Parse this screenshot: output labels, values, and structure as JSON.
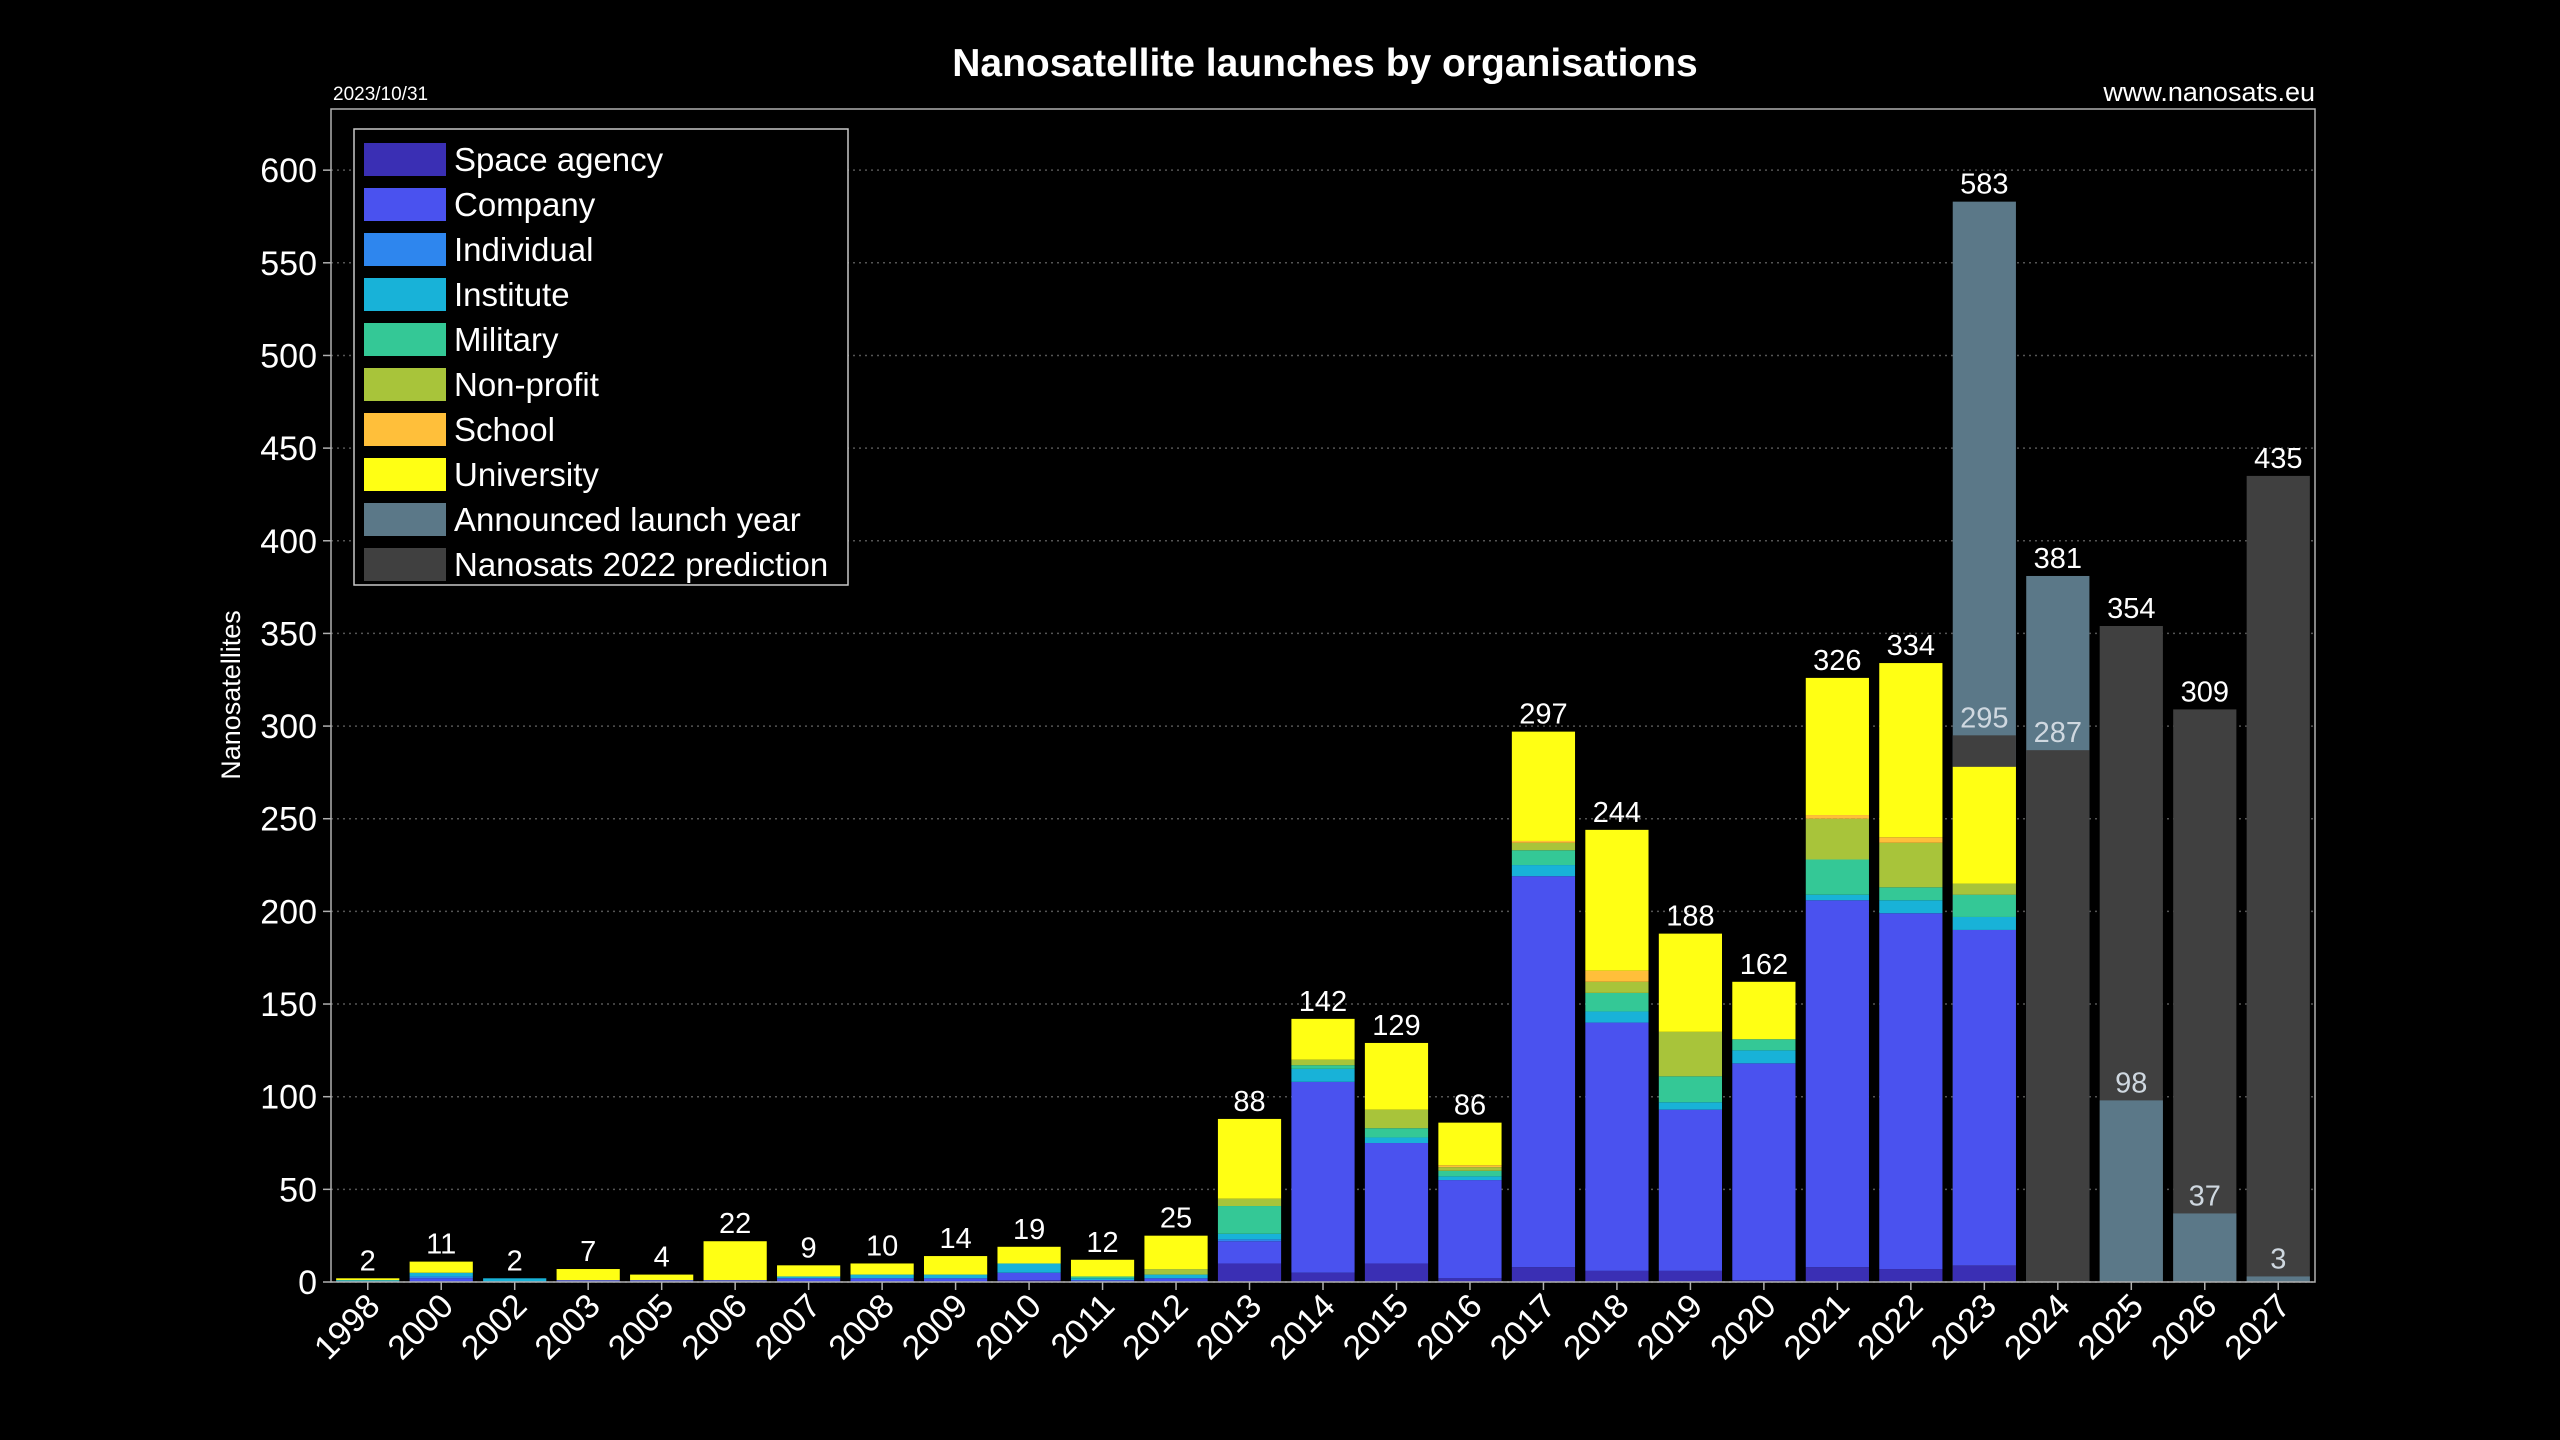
{
  "chart_data": {
    "type": "bar",
    "stacked": true,
    "title": "Nanosatellite launches by organisations",
    "date": "2023/10/31",
    "source": "www.nanosats.eu",
    "ylabel": "Nanosatellites",
    "grid": true,
    "legend": "upper-left",
    "ylim": [
      0,
      633
    ],
    "yticks": [
      0,
      50,
      100,
      150,
      200,
      250,
      300,
      350,
      400,
      450,
      500,
      550,
      600
    ],
    "categories": [
      "1998",
      "2000",
      "2002",
      "2003",
      "2005",
      "2006",
      "2007",
      "2008",
      "2009",
      "2010",
      "2011",
      "2012",
      "2013",
      "2014",
      "2015",
      "2016",
      "2017",
      "2018",
      "2019",
      "2020",
      "2021",
      "2022",
      "2023",
      "2024",
      "2025",
      "2026",
      "2027"
    ],
    "series": [
      {
        "name": "Space agency",
        "color": "#3a2fb4",
        "values": [
          0,
          0,
          0,
          0,
          0,
          0,
          0,
          0,
          0,
          1,
          0,
          0,
          10,
          5,
          10,
          2,
          8,
          6,
          6,
          1,
          8,
          7,
          9,
          null,
          null,
          null,
          null
        ]
      },
      {
        "name": "Company",
        "color": "#4a52ef",
        "values": [
          0,
          2,
          0,
          1,
          1,
          1,
          2,
          2,
          2,
          4,
          1,
          2,
          12,
          103,
          65,
          53,
          211,
          134,
          87,
          117,
          198,
          192,
          181,
          null,
          null,
          null,
          null
        ]
      },
      {
        "name": "Individual",
        "color": "#2e86ee",
        "values": [
          0,
          1,
          0,
          0,
          0,
          0,
          0,
          0,
          0,
          0,
          0,
          0,
          1,
          0,
          0,
          0,
          0,
          0,
          0,
          0,
          0,
          0,
          0,
          null,
          null,
          null,
          null
        ]
      },
      {
        "name": "Institute",
        "color": "#18b2d8",
        "values": [
          1,
          2,
          2,
          0,
          0,
          0,
          1,
          2,
          2,
          5,
          1,
          2,
          3,
          7,
          3,
          2,
          6,
          6,
          4,
          7,
          3,
          7,
          7,
          null,
          null,
          null,
          null
        ]
      },
      {
        "name": "Military",
        "color": "#34c896",
        "values": [
          0,
          0,
          0,
          0,
          0,
          0,
          0,
          0,
          0,
          0,
          1,
          0,
          15,
          2,
          5,
          3,
          8,
          10,
          14,
          6,
          19,
          7,
          12,
          null,
          null,
          null,
          null
        ]
      },
      {
        "name": "Non-profit",
        "color": "#a8c43a",
        "values": [
          0,
          0,
          0,
          0,
          0,
          0,
          0,
          0,
          0,
          0,
          0,
          3,
          4,
          3,
          10,
          2,
          4,
          6,
          24,
          0,
          22,
          24,
          6,
          null,
          null,
          null,
          null
        ]
      },
      {
        "name": "School",
        "color": "#ffbf3a",
        "values": [
          0,
          0,
          0,
          0,
          0,
          0,
          0,
          0,
          0,
          0,
          0,
          0,
          0,
          0,
          0,
          1,
          1,
          6,
          0,
          0,
          2,
          3,
          0,
          null,
          null,
          null,
          null
        ]
      },
      {
        "name": "University",
        "color": "#ffff14",
        "values": [
          1,
          6,
          0,
          6,
          3,
          21,
          6,
          6,
          10,
          9,
          9,
          18,
          43,
          22,
          36,
          23,
          59,
          76,
          53,
          31,
          74,
          94,
          63,
          null,
          null,
          null,
          null
        ]
      },
      {
        "name": "Announced launch year",
        "color": "#5b7888",
        "stack": false,
        "labels": true,
        "values": [
          null,
          null,
          null,
          null,
          null,
          null,
          null,
          null,
          null,
          null,
          null,
          null,
          null,
          null,
          null,
          null,
          null,
          null,
          null,
          null,
          null,
          null,
          583,
          381,
          98,
          37,
          3
        ]
      },
      {
        "name": "Nanosats 2022 prediction",
        "color": "#404040",
        "stack": false,
        "labels": true,
        "values": [
          null,
          null,
          null,
          null,
          null,
          null,
          null,
          null,
          null,
          null,
          null,
          null,
          null,
          null,
          null,
          null,
          null,
          null,
          null,
          null,
          null,
          null,
          295,
          287,
          354,
          309,
          435
        ]
      }
    ],
    "totals": [
      2,
      11,
      2,
      7,
      4,
      22,
      9,
      10,
      14,
      19,
      12,
      25,
      88,
      142,
      129,
      86,
      297,
      244,
      188,
      162,
      326,
      334,
      null,
      null,
      null,
      null,
      null
    ]
  }
}
